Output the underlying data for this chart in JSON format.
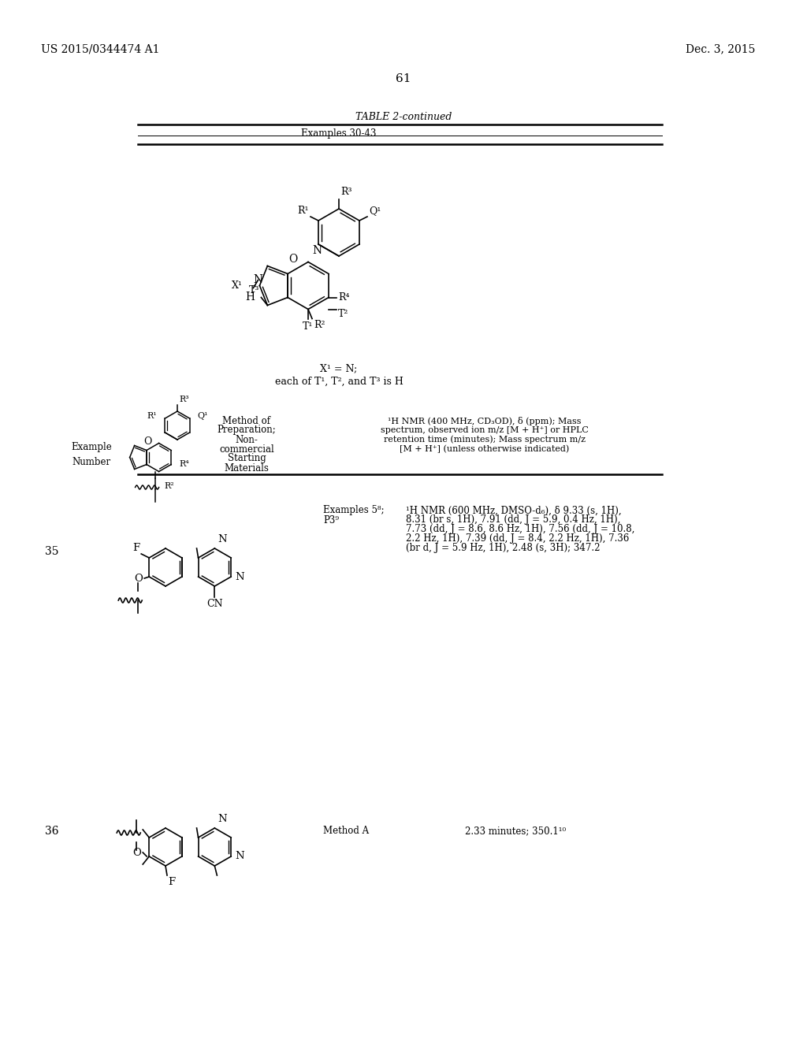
{
  "bg": "#ffffff",
  "header_left": "US 2015/0344474 A1",
  "header_right": "Dec. 3, 2015",
  "page_num": "61",
  "table_title": "TABLE 2-continued",
  "table_subtitle": "Examples 30-43",
  "cond1": "X¹ = N;",
  "cond2": "each of T¹, T², and T³ is H",
  "col1_hdr": "Example\nNumber",
  "col2_hdr": "Method of\nPreparation;\nNon-\ncommercial\nStarting\nMaterials",
  "col3_hdr_line1": "¹H NMR (400 MHz, CD₃OD), δ (ppm); Mass",
  "col3_hdr_line2": "spectrum, observed ion m/z [M + H⁺] or HPLC",
  "col3_hdr_line3": "retention time (minutes); Mass spectrum m/z",
  "col3_hdr_line4": "[M + H⁺] (unless otherwise indicated)",
  "ex35": "35",
  "ex35_method1": "Examples 5⁸;",
  "ex35_method2": "P3⁹",
  "ex35_data1": "¹H NMR (600 MHz, DMSO-d₆), δ 9.33 (s, 1H),",
  "ex35_data2": "8.31 (br s, 1H), 7.91 (dd, J = 5.9, 0.4 Hz, 1H),",
  "ex35_data3": "7.73 (dd, J = 8.6, 8.6 Hz, 1H), 7.56 (dd, J = 10.8,",
  "ex35_data4": "2.2 Hz, 1H), 7.39 (dd, J = 8.4, 2.2 Hz, 1H), 7.36",
  "ex35_data5": "(br d, J = 5.9 Hz, 1H), 2.48 (s, 3H); 347.2",
  "ex36": "36",
  "ex36_method": "Method A",
  "ex36_data": "2.33 minutes; 350.1¹⁰"
}
